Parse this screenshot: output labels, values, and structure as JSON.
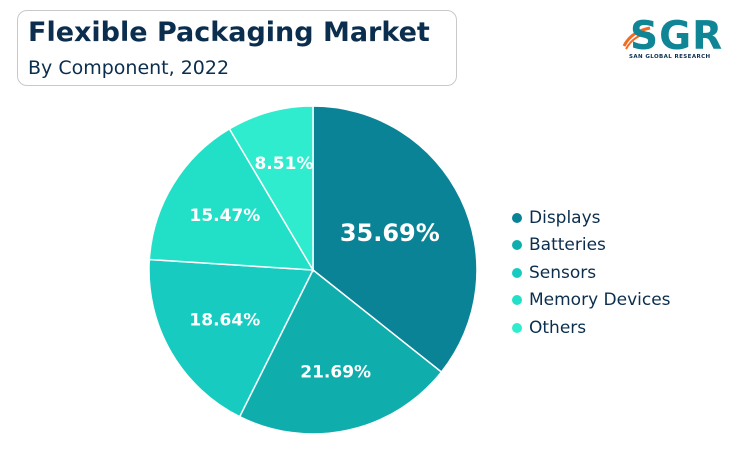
{
  "header": {
    "title": "Flexible Packaging Market",
    "subtitle": "By Component, 2022"
  },
  "logo": {
    "brand": "SGR",
    "tagline": "SAN GLOBAL RESEARCH",
    "colors": {
      "brand": "#0f8596",
      "swoosh": "#f26b21"
    }
  },
  "chart_data": {
    "type": "pie",
    "title": "Flexible Packaging Market",
    "subtitle": "By Component, 2022",
    "legend_position": "right",
    "categories": [
      "Displays",
      "Batteries",
      "Sensors",
      "Memory Devices",
      "Others"
    ],
    "values": [
      35.69,
      21.69,
      18.64,
      15.47,
      8.51
    ],
    "labels": [
      "35.69%",
      "21.69%",
      "18.64%",
      "15.47%",
      "8.51%"
    ],
    "colors": [
      "#0a8396",
      "#0faeac",
      "#18cbc0",
      "#22dfc8",
      "#2eeccd"
    ]
  }
}
